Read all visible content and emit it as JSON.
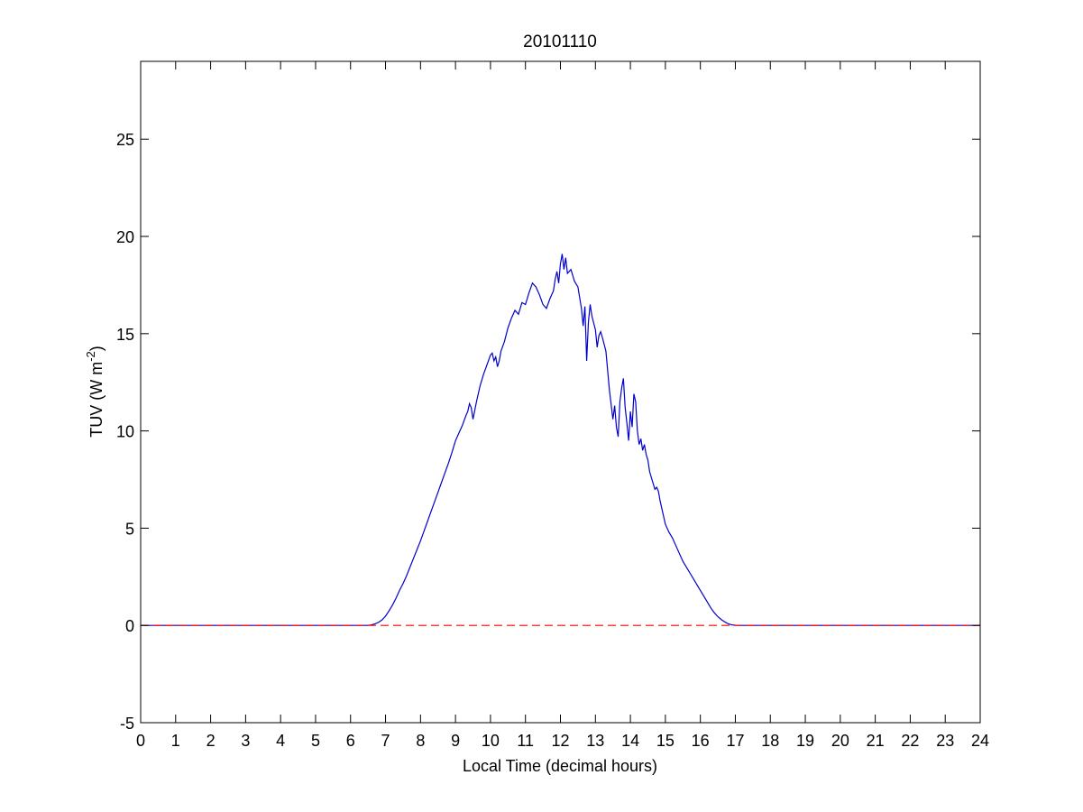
{
  "chart_data": {
    "type": "line",
    "title": "20101110",
    "xlabel": "Local Time (decimal hours)",
    "ylabel": {
      "main": "TUV (W m",
      "superscript": "-2",
      "suffix": ")"
    },
    "xlim": [
      0,
      24
    ],
    "ylim": [
      -5,
      29
    ],
    "xticks": [
      0,
      1,
      2,
      3,
      4,
      5,
      6,
      7,
      8,
      9,
      10,
      11,
      12,
      13,
      14,
      15,
      16,
      17,
      18,
      19,
      20,
      21,
      22,
      23,
      24
    ],
    "yticks": [
      -5,
      0,
      5,
      10,
      15,
      20,
      25
    ],
    "grid": false,
    "series": [
      {
        "color": "#0000cc",
        "style": "solid",
        "x": [
          0,
          6.5,
          6.6,
          6.7,
          6.8,
          6.9,
          7.0,
          7.1,
          7.2,
          7.3,
          7.4,
          7.5,
          7.6,
          7.7,
          7.8,
          7.9,
          8.0,
          8.1,
          8.2,
          8.3,
          8.4,
          8.5,
          8.6,
          8.7,
          8.8,
          8.9,
          9.0,
          9.1,
          9.2,
          9.3,
          9.35,
          9.4,
          9.45,
          9.5,
          9.6,
          9.7,
          9.8,
          9.9,
          10.0,
          10.05,
          10.1,
          10.15,
          10.2,
          10.25,
          10.3,
          10.4,
          10.5,
          10.6,
          10.7,
          10.8,
          10.9,
          11.0,
          11.1,
          11.2,
          11.3,
          11.4,
          11.5,
          11.6,
          11.7,
          11.8,
          11.85,
          11.9,
          11.95,
          12.0,
          12.05,
          12.1,
          12.15,
          12.2,
          12.3,
          12.4,
          12.5,
          12.6,
          12.65,
          12.7,
          12.75,
          12.8,
          12.85,
          12.9,
          13.0,
          13.05,
          13.1,
          13.15,
          13.2,
          13.3,
          13.4,
          13.5,
          13.55,
          13.6,
          13.65,
          13.7,
          13.75,
          13.8,
          13.85,
          13.9,
          13.95,
          14.0,
          14.05,
          14.1,
          14.15,
          14.2,
          14.25,
          14.3,
          14.35,
          14.4,
          14.45,
          14.5,
          14.55,
          14.6,
          14.65,
          14.7,
          14.75,
          14.8,
          14.85,
          14.9,
          14.95,
          15.0,
          15.1,
          15.2,
          15.3,
          15.4,
          15.5,
          15.6,
          15.7,
          15.8,
          15.9,
          16.0,
          16.1,
          16.2,
          16.3,
          16.4,
          16.5,
          16.6,
          16.7,
          16.8,
          16.9,
          17.0,
          17.1,
          17.2,
          17.3,
          24
        ],
        "values": [
          0,
          0,
          0.03,
          0.08,
          0.16,
          0.28,
          0.48,
          0.75,
          1.05,
          1.4,
          1.8,
          2.15,
          2.55,
          3.0,
          3.45,
          3.9,
          4.35,
          4.85,
          5.35,
          5.85,
          6.35,
          6.85,
          7.35,
          7.85,
          8.35,
          8.9,
          9.5,
          9.9,
          10.3,
          10.8,
          11.0,
          11.4,
          11.2,
          10.6,
          11.5,
          12.3,
          12.9,
          13.4,
          13.9,
          14.0,
          13.6,
          13.8,
          13.3,
          13.6,
          14.1,
          14.6,
          15.3,
          15.8,
          16.2,
          16.0,
          16.6,
          16.5,
          17.1,
          17.6,
          17.4,
          17.0,
          16.5,
          16.3,
          16.8,
          17.2,
          17.8,
          18.2,
          17.6,
          18.6,
          19.1,
          18.3,
          18.9,
          18.1,
          18.3,
          17.7,
          17.4,
          16.3,
          15.4,
          16.4,
          13.6,
          15.6,
          16.5,
          15.9,
          15.2,
          14.3,
          14.9,
          15.1,
          14.8,
          14.1,
          12.1,
          10.6,
          11.3,
          10.2,
          9.7,
          11.5,
          12.2,
          12.7,
          11.2,
          10.4,
          9.5,
          11.0,
          10.2,
          11.9,
          11.5,
          10.0,
          9.3,
          9.6,
          9.0,
          9.3,
          8.8,
          8.5,
          7.9,
          7.6,
          7.3,
          7.0,
          7.1,
          6.9,
          6.4,
          6.0,
          5.6,
          5.2,
          4.8,
          4.5,
          4.1,
          3.7,
          3.3,
          3.0,
          2.7,
          2.4,
          2.1,
          1.8,
          1.5,
          1.2,
          0.9,
          0.65,
          0.45,
          0.3,
          0.18,
          0.08,
          0.03,
          0.01,
          0,
          0,
          0,
          0
        ]
      },
      {
        "color": "#ff0000",
        "style": "dashed",
        "x": [
          0,
          24
        ],
        "values": [
          0,
          0
        ]
      }
    ]
  }
}
